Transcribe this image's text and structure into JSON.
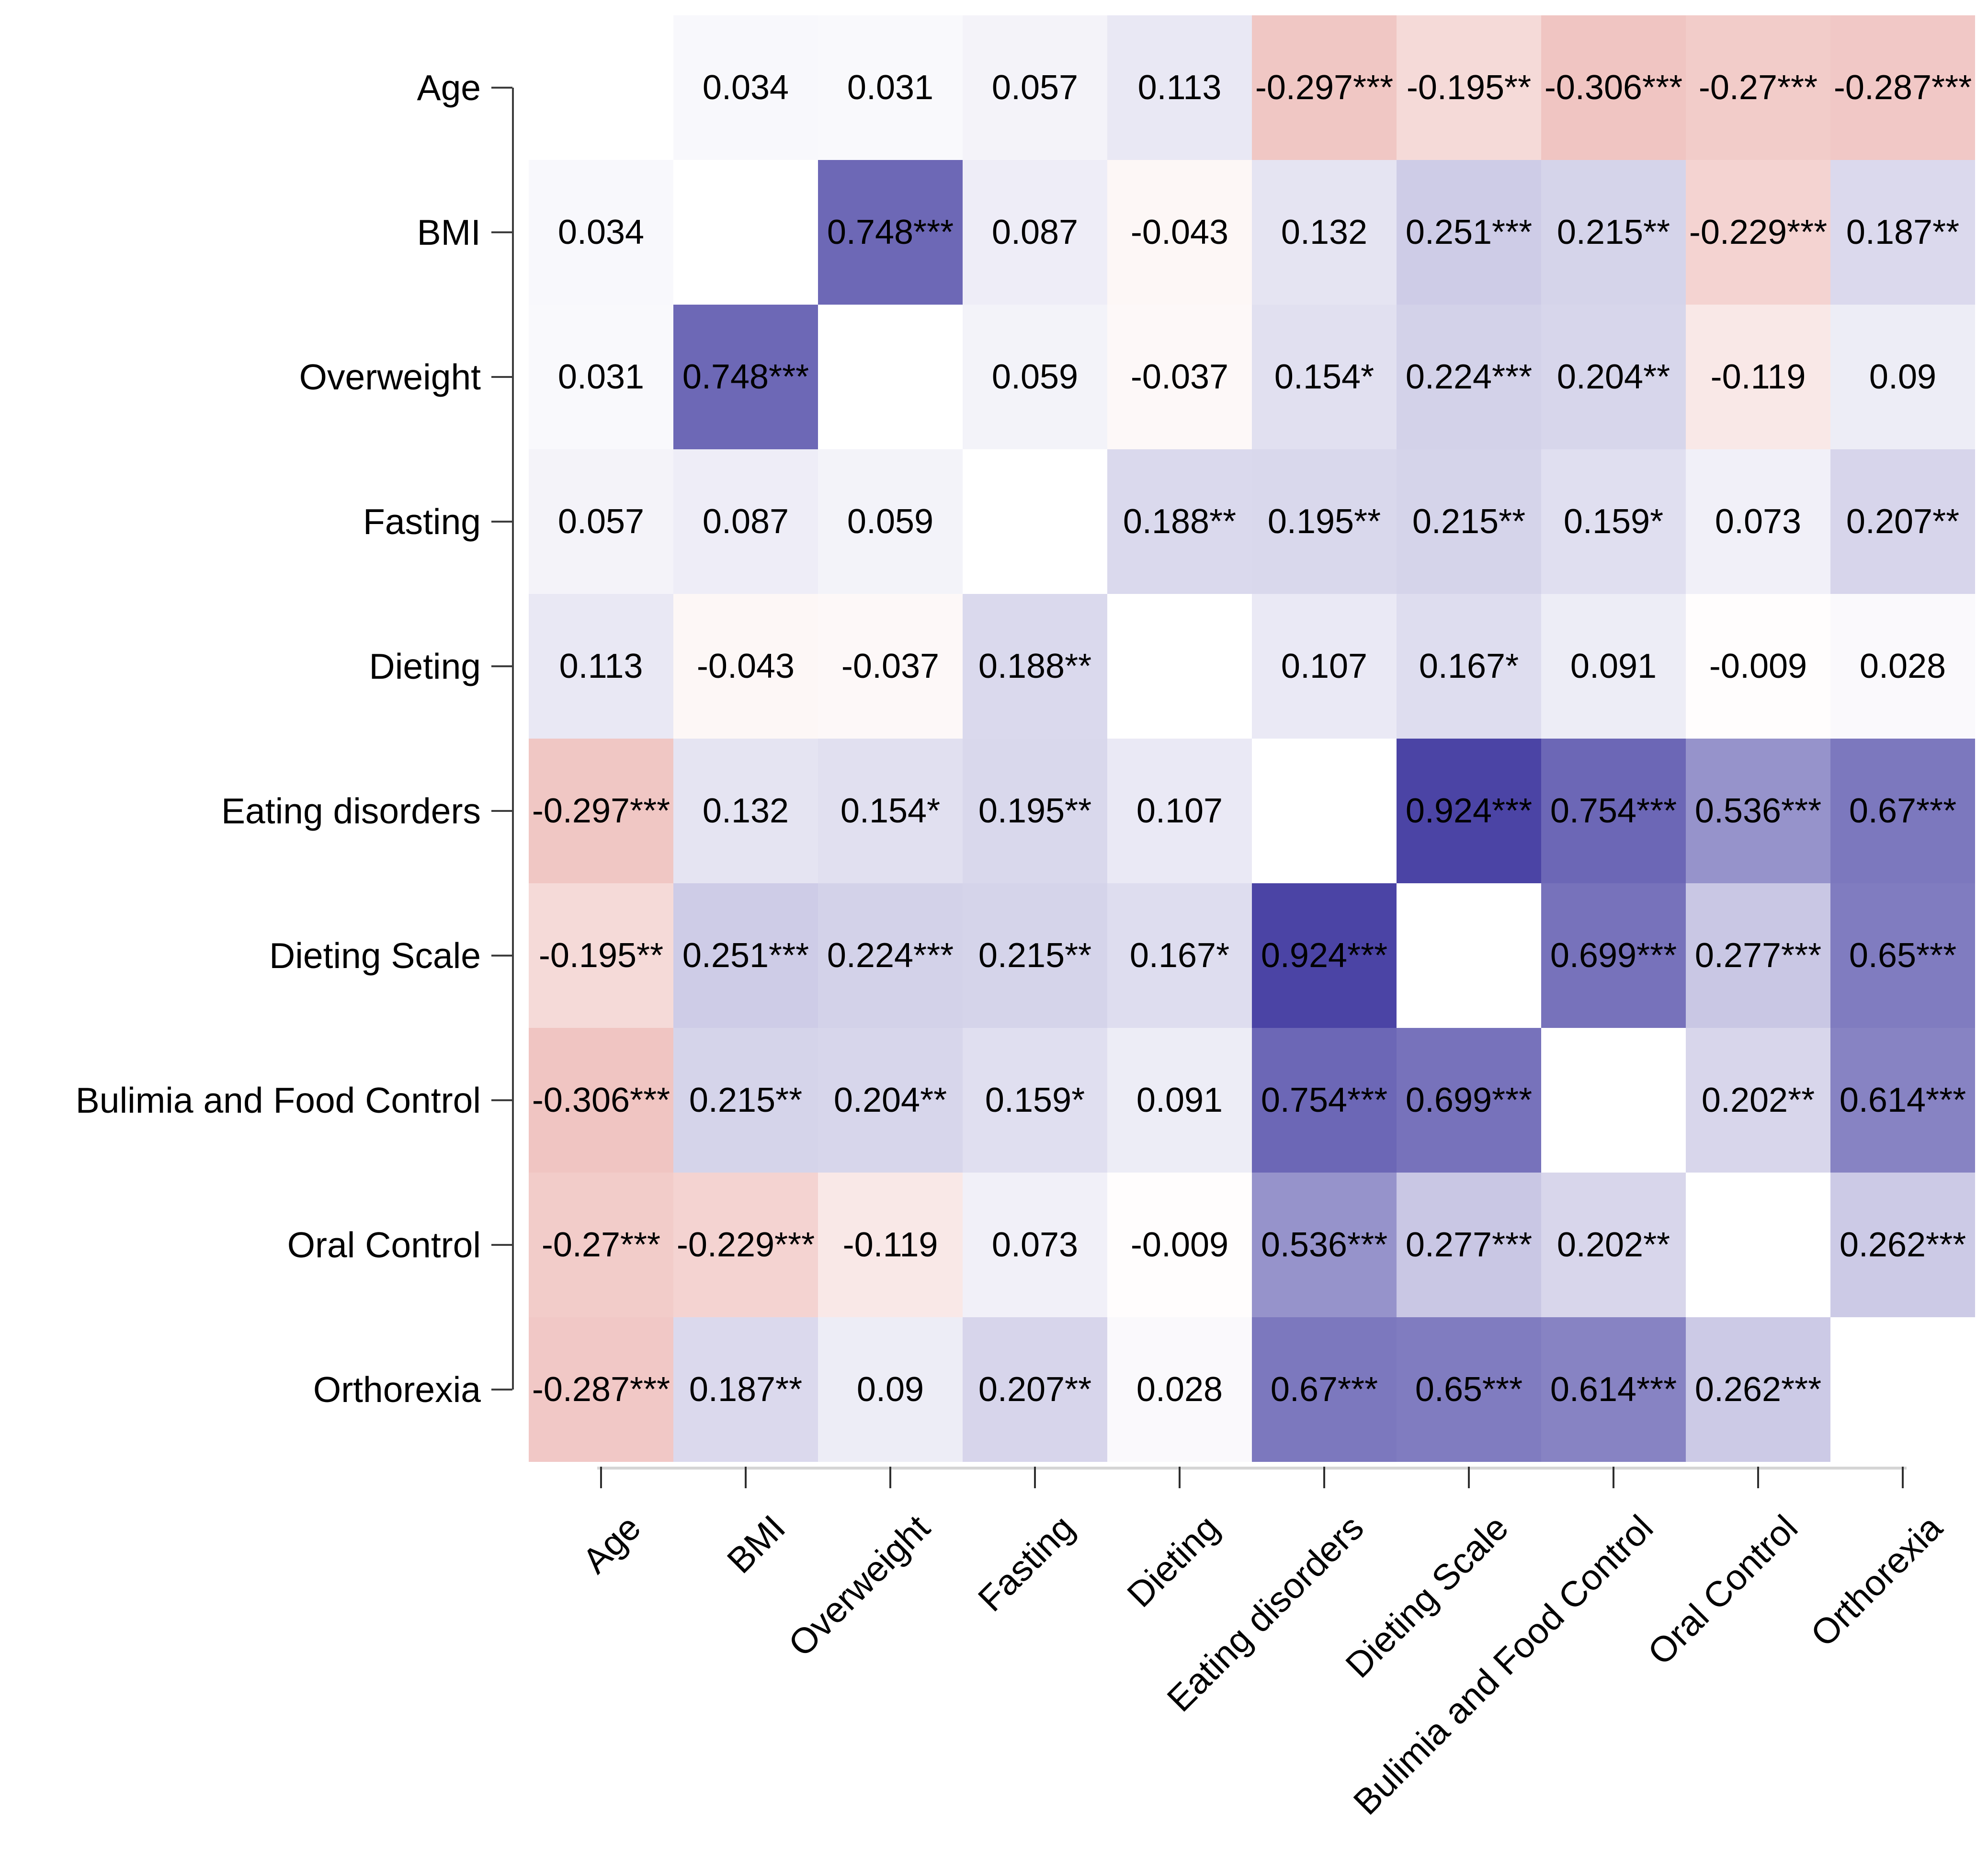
{
  "chart_data": {
    "type": "heatmap",
    "title": "",
    "xlabel": "",
    "ylabel": "",
    "legend": "none",
    "grid": "off",
    "diagonal": "blank",
    "color_scale": {
      "negative_end": "#ce4138",
      "zero": "#ffffff",
      "positive_end": "#3c359e",
      "domain": [
        -1,
        1
      ]
    },
    "y_tick_labels": [
      "Age",
      "BMI",
      "Overweight",
      "Fasting",
      "Dieting",
      "Eating disorders",
      "Dieting Scale",
      "Bulimia and Food Control",
      "Oral Control",
      "Orthorexia"
    ],
    "x_tick_labels": [
      "Age",
      "BMI",
      "Overweight",
      "Fasting",
      "Dieting",
      "Eating disorders",
      "Dieting Scale",
      "Bulimia and Food Control",
      "Oral Control",
      "Orthorexia"
    ],
    "values": [
      [
        null,
        0.034,
        0.031,
        0.057,
        0.113,
        -0.297,
        -0.195,
        -0.306,
        -0.27,
        -0.287
      ],
      [
        0.034,
        null,
        0.748,
        0.087,
        -0.043,
        0.132,
        0.251,
        0.215,
        -0.229,
        0.187
      ],
      [
        0.031,
        0.748,
        null,
        0.059,
        -0.037,
        0.154,
        0.224,
        0.204,
        -0.119,
        0.09
      ],
      [
        0.057,
        0.087,
        0.059,
        null,
        0.188,
        0.195,
        0.215,
        0.159,
        0.073,
        0.207
      ],
      [
        0.113,
        -0.043,
        -0.037,
        0.188,
        null,
        0.107,
        0.167,
        0.091,
        -0.009,
        0.028
      ],
      [
        -0.297,
        0.132,
        0.154,
        0.195,
        0.107,
        null,
        0.924,
        0.754,
        0.536,
        0.67
      ],
      [
        -0.195,
        0.251,
        0.224,
        0.215,
        0.167,
        0.924,
        null,
        0.699,
        0.277,
        0.65
      ],
      [
        -0.306,
        0.215,
        0.204,
        0.159,
        0.091,
        0.754,
        0.699,
        null,
        0.202,
        0.614
      ],
      [
        -0.27,
        -0.229,
        -0.119,
        0.073,
        -0.009,
        0.536,
        0.277,
        0.202,
        null,
        0.262
      ],
      [
        -0.287,
        0.187,
        0.09,
        0.207,
        0.028,
        0.67,
        0.65,
        0.614,
        0.262,
        null
      ]
    ],
    "labels": [
      [
        null,
        "0.034",
        "0.031",
        "0.057",
        "0.113",
        "-0.297***",
        "-0.195**",
        "-0.306***",
        "-0.27***",
        "-0.287***"
      ],
      [
        "0.034",
        null,
        "0.748***",
        "0.087",
        "-0.043",
        "0.132",
        "0.251***",
        "0.215**",
        "-0.229***",
        "0.187**"
      ],
      [
        "0.031",
        "0.748***",
        null,
        "0.059",
        "-0.037",
        "0.154*",
        "0.224***",
        "0.204**",
        "-0.119",
        "0.09"
      ],
      [
        "0.057",
        "0.087",
        "0.059",
        null,
        "0.188**",
        "0.195**",
        "0.215**",
        "0.159*",
        "0.073",
        "0.207**"
      ],
      [
        "0.113",
        "-0.043",
        "-0.037",
        "0.188**",
        null,
        "0.107",
        "0.167*",
        "0.091",
        "-0.009",
        "0.028"
      ],
      [
        "-0.297***",
        "0.132",
        "0.154*",
        "0.195**",
        "0.107",
        null,
        "0.924***",
        "0.754***",
        "0.536***",
        "0.67***"
      ],
      [
        "-0.195**",
        "0.251***",
        "0.224***",
        "0.215**",
        "0.167*",
        "0.924***",
        null,
        "0.699***",
        "0.277***",
        "0.65***"
      ],
      [
        "-0.306***",
        "0.215**",
        "0.204**",
        "0.159*",
        "0.091",
        "0.754***",
        "0.699***",
        null,
        "0.202**",
        "0.614***"
      ],
      [
        "-0.27***",
        "-0.229***",
        "-0.119",
        "0.073",
        "-0.009",
        "0.536***",
        "0.277***",
        "0.202**",
        null,
        "0.262***"
      ],
      [
        "-0.287***",
        "0.187**",
        "0.09",
        "0.207**",
        "0.028",
        "0.67***",
        "0.65***",
        "0.614***",
        "0.262***",
        null
      ]
    ]
  }
}
